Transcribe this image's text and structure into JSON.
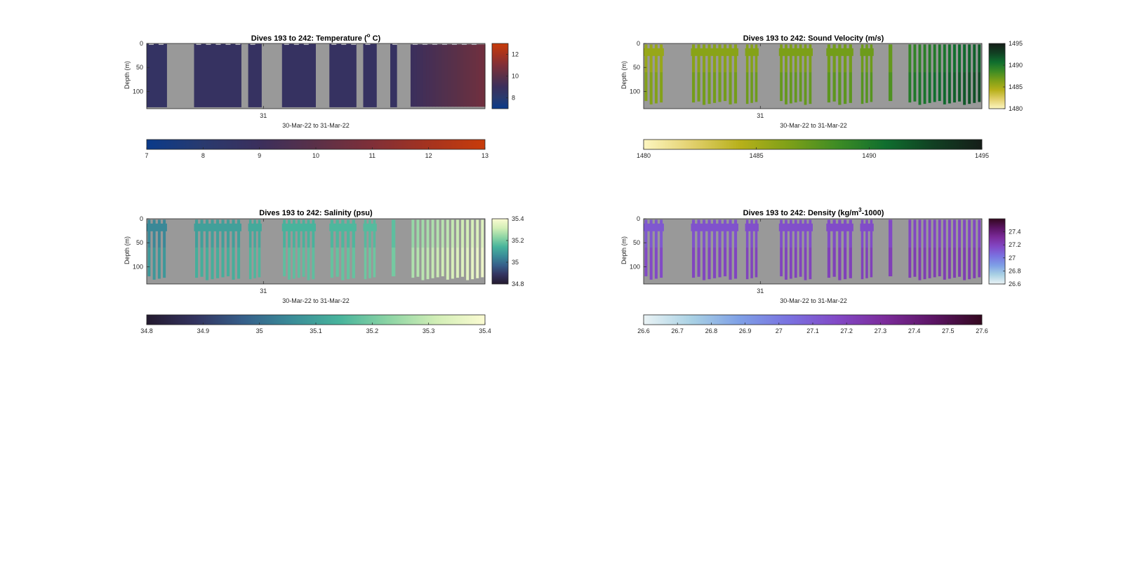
{
  "figure": {
    "background": "#ffffff",
    "nodata_color": "#999999"
  },
  "chart_data": [
    {
      "type": "heatmap",
      "id": "temp",
      "title": "Dives 193 to 242: Temperature (",
      "title_sup": "o",
      "title_suffix": " C)",
      "ylabel": "Depth (m)",
      "xlabel": "30-Mar-22 to 31-Mar-22",
      "ylim": [
        0,
        136
      ],
      "yticks": [
        0,
        50,
        100
      ],
      "xtick_labels": [
        "31"
      ],
      "clim": [
        7,
        13
      ],
      "side_colorbar_ticks": [
        12,
        10,
        8
      ],
      "bottom_colorbar_ticks": [
        7,
        8,
        9,
        10,
        11,
        12,
        13
      ],
      "colormap": [
        "#0a3a8a",
        "#293a6e",
        "#3b2f5c",
        "#5a3048",
        "#7f2f38",
        "#a5331f",
        "#c83c0a"
      ],
      "render": "full",
      "value_range": [
        8.6,
        10.6
      ],
      "dives": [
        {
          "x": [
            0.0,
            0.06
          ],
          "v": 8.6
        },
        {
          "x": [
            0.14,
            0.28
          ],
          "v": 8.7
        },
        {
          "x": [
            0.3,
            0.34
          ],
          "v": 8.7
        },
        {
          "x": [
            0.4,
            0.5
          ],
          "v": 8.7
        },
        {
          "x": [
            0.54,
            0.62
          ],
          "v": 8.7
        },
        {
          "x": [
            0.64,
            0.68
          ],
          "v": 8.7
        },
        {
          "x": [
            0.72,
            0.74
          ],
          "v": 8.7
        },
        {
          "x": [
            0.78,
            1.0
          ],
          "v": [
            9.0,
            10.6
          ]
        }
      ]
    },
    {
      "type": "heatmap",
      "id": "sv",
      "title": "Dives 193 to 242: Sound Velocity (m/s)",
      "ylabel": "Depth (m)",
      "xlabel": "30-Mar-22 to 31-Mar-22",
      "ylim": [
        0,
        136
      ],
      "yticks": [
        0,
        50,
        100
      ],
      "xtick_labels": [
        "31"
      ],
      "clim": [
        1480,
        1495
      ],
      "side_colorbar_ticks": [
        1495,
        1490,
        1485,
        1480
      ],
      "bottom_colorbar_ticks": [
        1480,
        1485,
        1490,
        1495
      ],
      "colormap": [
        "#fdf6c0",
        "#e2d06d",
        "#b7b01a",
        "#7ea018",
        "#3e8c24",
        "#0f6e2e",
        "#113f22",
        "#151d18"
      ],
      "render": "bars",
      "value_range": [
        1485.5,
        1491.5
      ],
      "dives": [
        {
          "x": [
            0.0,
            0.06
          ],
          "v": 1485.5
        },
        {
          "x": [
            0.14,
            0.28
          ],
          "v": 1486.0
        },
        {
          "x": [
            0.3,
            0.34
          ],
          "v": 1486.2
        },
        {
          "x": [
            0.4,
            0.5
          ],
          "v": 1486.5
        },
        {
          "x": [
            0.54,
            0.62
          ],
          "v": 1486.8
        },
        {
          "x": [
            0.64,
            0.68
          ],
          "v": 1487.0
        },
        {
          "x": [
            0.72,
            0.74
          ],
          "v": 1487.3
        },
        {
          "x": [
            0.78,
            1.0
          ],
          "v": [
            1489.0,
            1491.5
          ]
        }
      ]
    },
    {
      "type": "heatmap",
      "id": "sal",
      "title": "Dives 193 to 242: Salinity (psu)",
      "ylabel": "Depth (m)",
      "xlabel": "30-Mar-22 to 31-Mar-22",
      "ylim": [
        0,
        136
      ],
      "yticks": [
        0,
        50,
        100
      ],
      "xtick_labels": [
        "31"
      ],
      "clim": [
        34.8,
        35.4
      ],
      "side_colorbar_ticks": [
        35.4,
        35.2,
        35,
        34.8
      ],
      "bottom_colorbar_ticks": [
        34.8,
        34.9,
        35,
        35.1,
        35.2,
        35.3,
        35.4
      ],
      "colormap": [
        "#241a2f",
        "#33335f",
        "#365f8a",
        "#3a8c98",
        "#48b49c",
        "#8cd4a4",
        "#d2eeb6",
        "#fbfbd2"
      ],
      "render": "bars",
      "value_range": [
        35.02,
        35.34
      ],
      "dives": [
        {
          "x": [
            0.0,
            0.06
          ],
          "v": 35.05
        },
        {
          "x": [
            0.14,
            0.28
          ],
          "v": 35.1
        },
        {
          "x": [
            0.3,
            0.34
          ],
          "v": 35.12
        },
        {
          "x": [
            0.4,
            0.5
          ],
          "v": 35.14
        },
        {
          "x": [
            0.54,
            0.62
          ],
          "v": 35.15
        },
        {
          "x": [
            0.64,
            0.68
          ],
          "v": 35.16
        },
        {
          "x": [
            0.72,
            0.74
          ],
          "v": 35.17
        },
        {
          "x": [
            0.78,
            1.0
          ],
          "v": [
            35.24,
            35.34
          ]
        }
      ]
    },
    {
      "type": "heatmap",
      "id": "dens",
      "title": "Dives 193 to 242: Density (kg/m",
      "title_sup": "3",
      "title_suffix": "-1000)",
      "ylabel": "Depth (m)",
      "xlabel": "30-Mar-22 to 31-Mar-22",
      "ylim": [
        0,
        136
      ],
      "yticks": [
        0,
        50,
        100
      ],
      "xtick_labels": [
        "31"
      ],
      "clim": [
        26.6,
        27.6
      ],
      "side_colorbar_ticks": [
        27.4,
        27.2,
        27,
        26.8,
        26.6
      ],
      "bottom_colorbar_ticks": [
        26.6,
        26.7,
        26.8,
        26.9,
        27,
        27.1,
        27.2,
        27.3,
        27.4,
        27.5,
        27.6
      ],
      "colormap": [
        "#eaf3f5",
        "#a9d1e4",
        "#7e9fe6",
        "#7a72e0",
        "#8249c6",
        "#7b2b9a",
        "#5b1464",
        "#33081e"
      ],
      "render": "bars",
      "value_range": [
        27.1,
        27.2
      ],
      "dives": [
        {
          "x": [
            0.0,
            0.06
          ],
          "v": 27.12
        },
        {
          "x": [
            0.14,
            0.28
          ],
          "v": 27.14
        },
        {
          "x": [
            0.3,
            0.34
          ],
          "v": 27.15
        },
        {
          "x": [
            0.4,
            0.5
          ],
          "v": 27.15
        },
        {
          "x": [
            0.54,
            0.62
          ],
          "v": 27.16
        },
        {
          "x": [
            0.64,
            0.68
          ],
          "v": 27.16
        },
        {
          "x": [
            0.72,
            0.74
          ],
          "v": 27.17
        },
        {
          "x": [
            0.78,
            1.0
          ],
          "v": 27.18
        }
      ]
    }
  ]
}
